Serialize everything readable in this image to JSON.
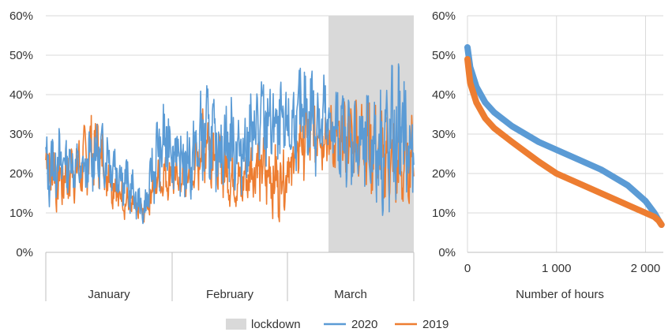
{
  "colors": {
    "series_2020": "#5b9bd5",
    "series_2019": "#ed7d31",
    "lockdown": "#d9d9d9",
    "grid": "#d9d9d9",
    "axis": "#bfbfbf"
  },
  "chart_data": [
    {
      "type": "line",
      "x_categories": [
        "January",
        "February",
        "March"
      ],
      "ylim": [
        0,
        0.6
      ],
      "y_ticks": [
        "0%",
        "10%",
        "20%",
        "30%",
        "40%",
        "50%",
        "60%"
      ],
      "shaded_region": {
        "name": "lockdown",
        "x_start_day": 75,
        "x_end_day": 90
      },
      "series": [
        {
          "name": "2020",
          "color": "#5b9bd5",
          "day": [
            0,
            3,
            6,
            9,
            12,
            15,
            18,
            21,
            24,
            27,
            30,
            33,
            36,
            39,
            42,
            45,
            48,
            51,
            54,
            57,
            60,
            63,
            66,
            69,
            72,
            75,
            78,
            81,
            84,
            87,
            90
          ],
          "daily_min": [
            0.1,
            0.13,
            0.15,
            0.14,
            0.15,
            0.16,
            0.12,
            0.09,
            0.06,
            0.13,
            0.17,
            0.12,
            0.11,
            0.16,
            0.14,
            0.15,
            0.13,
            0.17,
            0.19,
            0.18,
            0.2,
            0.21,
            0.18,
            0.19,
            0.17,
            0.15,
            0.12,
            0.08,
            0.07,
            0.09,
            0.1
          ],
          "daily_max": [
            0.31,
            0.33,
            0.3,
            0.27,
            0.35,
            0.33,
            0.29,
            0.22,
            0.14,
            0.36,
            0.41,
            0.33,
            0.36,
            0.45,
            0.39,
            0.41,
            0.38,
            0.45,
            0.48,
            0.44,
            0.43,
            0.5,
            0.51,
            0.45,
            0.43,
            0.41,
            0.42,
            0.44,
            0.48,
            0.52,
            0.35
          ]
        },
        {
          "name": "2019",
          "color": "#ed7d31",
          "day": [
            0,
            3,
            6,
            9,
            12,
            15,
            18,
            21,
            24,
            27,
            30,
            33,
            36,
            39,
            42,
            45,
            48,
            51,
            54,
            57,
            60,
            63,
            66,
            69,
            72,
            75,
            78,
            81,
            84,
            87,
            90
          ],
          "daily_min": [
            0.14,
            0.09,
            0.1,
            0.13,
            0.16,
            0.12,
            0.09,
            0.07,
            0.07,
            0.12,
            0.13,
            0.13,
            0.13,
            0.17,
            0.15,
            0.11,
            0.1,
            0.13,
            0.1,
            0.07,
            0.13,
            0.18,
            0.2,
            0.19,
            0.18,
            0.17,
            0.16,
            0.11,
            0.1,
            0.09,
            0.13
          ],
          "daily_max": [
            0.33,
            0.28,
            0.3,
            0.32,
            0.38,
            0.29,
            0.2,
            0.16,
            0.14,
            0.24,
            0.26,
            0.24,
            0.25,
            0.42,
            0.33,
            0.26,
            0.24,
            0.31,
            0.3,
            0.28,
            0.31,
            0.4,
            0.42,
            0.39,
            0.38,
            0.41,
            0.43,
            0.4,
            0.36,
            0.33,
            0.36
          ]
        }
      ]
    },
    {
      "type": "line",
      "xlabel": "Number of hours",
      "xlim": [
        0,
        2200
      ],
      "x_ticks": [
        "0",
        "1 000",
        "2 000"
      ],
      "ylim": [
        0,
        0.6
      ],
      "y_ticks": [
        "0%",
        "10%",
        "20%",
        "30%",
        "40%",
        "50%",
        "60%"
      ],
      "series": [
        {
          "name": "2020",
          "color": "#5b9bd5",
          "x": [
            0,
            30,
            100,
            200,
            300,
            500,
            800,
            1000,
            1200,
            1500,
            1800,
            2000,
            2100,
            2150,
            2180
          ],
          "y": [
            0.52,
            0.47,
            0.42,
            0.38,
            0.355,
            0.32,
            0.28,
            0.26,
            0.24,
            0.21,
            0.17,
            0.13,
            0.1,
            0.08,
            0.07
          ]
        },
        {
          "name": "2019",
          "color": "#ed7d31",
          "x": [
            0,
            30,
            100,
            200,
            300,
            500,
            800,
            1000,
            1200,
            1500,
            1800,
            2000,
            2100,
            2150,
            2180
          ],
          "y": [
            0.49,
            0.43,
            0.38,
            0.34,
            0.315,
            0.28,
            0.23,
            0.2,
            0.18,
            0.15,
            0.12,
            0.1,
            0.09,
            0.08,
            0.07
          ]
        }
      ]
    }
  ],
  "legend": {
    "items": [
      {
        "label": "lockdown",
        "color": "#d9d9d9",
        "kind": "box"
      },
      {
        "label": "2020",
        "color": "#5b9bd5",
        "kind": "line"
      },
      {
        "label": "2019",
        "color": "#ed7d31",
        "kind": "line"
      }
    ]
  }
}
